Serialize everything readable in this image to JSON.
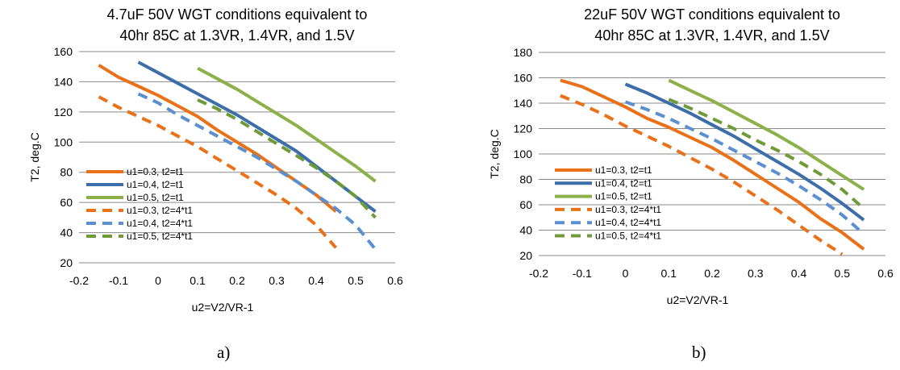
{
  "chart_data": [
    {
      "type": "line",
      "title": "4.7uF 50V WGT conditions equivalent to 40hr 85C at 1.3VR, 1.4VR, and 1.5V",
      "title_lines": [
        "4.7uF 50V WGT conditions equivalent to",
        "40hr 85C at 1.3VR, 1.4VR, and 1.5V"
      ],
      "xlabel": "u2=V2/VR-1",
      "ylabel": "T2, deg.C",
      "xlim": [
        -0.2,
        0.6
      ],
      "ylim": [
        20,
        160
      ],
      "x_ticks": [
        "-0.2",
        "-0.1",
        "0",
        "0.1",
        "0.2",
        "0.3",
        "0.4",
        "0.5",
        "0.6"
      ],
      "y_ticks": [
        "20",
        "40",
        "60",
        "80",
        "100",
        "120",
        "140",
        "160"
      ],
      "grid": "horizontal",
      "legend_position": "lower-left",
      "caption": "a)",
      "series": [
        {
          "name": "u1=0.3, t2=t1",
          "color": "#E8711A",
          "style": "solid",
          "points": [
            [
              -0.15,
              151
            ],
            [
              -0.1,
              143
            ],
            [
              -0.05,
              137
            ],
            [
              0,
              131
            ],
            [
              0.05,
              124
            ],
            [
              0.1,
              117
            ],
            [
              0.15,
              108
            ],
            [
              0.2,
              100
            ],
            [
              0.25,
              92
            ],
            [
              0.3,
              83
            ],
            [
              0.35,
              74
            ],
            [
              0.4,
              65
            ],
            [
              0.45,
              54
            ]
          ]
        },
        {
          "name": "u1=0.4, t2=t1",
          "color": "#3E6EA8",
          "style": "solid",
          "points": [
            [
              -0.05,
              153
            ],
            [
              0,
              146
            ],
            [
              0.05,
              139
            ],
            [
              0.1,
              132
            ],
            [
              0.15,
              125
            ],
            [
              0.2,
              118
            ],
            [
              0.25,
              110
            ],
            [
              0.3,
              102
            ],
            [
              0.35,
              94
            ],
            [
              0.4,
              84
            ],
            [
              0.45,
              74
            ],
            [
              0.5,
              64
            ],
            [
              0.55,
              54
            ]
          ]
        },
        {
          "name": "u1=0.5, t2=t1",
          "color": "#8CB04A",
          "style": "solid",
          "points": [
            [
              0.1,
              149
            ],
            [
              0.15,
              142
            ],
            [
              0.2,
              135
            ],
            [
              0.25,
              127
            ],
            [
              0.3,
              119
            ],
            [
              0.35,
              111
            ],
            [
              0.4,
              102
            ],
            [
              0.45,
              93
            ],
            [
              0.5,
              84
            ],
            [
              0.55,
              74
            ]
          ]
        },
        {
          "name": "u1=0.3, t2=4*t1",
          "color": "#E8711A",
          "style": "dashed",
          "points": [
            [
              -0.15,
              130
            ],
            [
              -0.1,
              123
            ],
            [
              -0.05,
              117
            ],
            [
              0,
              111
            ],
            [
              0.05,
              104
            ],
            [
              0.1,
              97
            ],
            [
              0.15,
              89
            ],
            [
              0.2,
              81
            ],
            [
              0.25,
              73
            ],
            [
              0.3,
              65
            ],
            [
              0.35,
              56
            ],
            [
              0.4,
              45
            ],
            [
              0.45,
              30
            ]
          ]
        },
        {
          "name": "u1=0.4, t2=4*t1",
          "color": "#5B8FD0",
          "style": "dashed",
          "points": [
            [
              -0.05,
              132
            ],
            [
              0,
              126
            ],
            [
              0.05,
              118
            ],
            [
              0.1,
              111
            ],
            [
              0.15,
              104
            ],
            [
              0.2,
              97
            ],
            [
              0.25,
              90
            ],
            [
              0.3,
              82
            ],
            [
              0.35,
              74
            ],
            [
              0.4,
              65
            ],
            [
              0.45,
              56
            ],
            [
              0.5,
              45
            ],
            [
              0.55,
              29
            ]
          ]
        },
        {
          "name": "u1=0.5, t2=4*t1",
          "color": "#6E9A3A",
          "style": "dashed",
          "points": [
            [
              0.1,
              128
            ],
            [
              0.15,
              122
            ],
            [
              0.2,
              115
            ],
            [
              0.25,
              107
            ],
            [
              0.3,
              99
            ],
            [
              0.35,
              91
            ],
            [
              0.4,
              83
            ],
            [
              0.45,
              74
            ],
            [
              0.5,
              64
            ],
            [
              0.55,
              50
            ]
          ]
        }
      ]
    },
    {
      "type": "line",
      "title": "22uF 50V WGT conditions equivalent to 40hr 85C at 1.3VR, 1.4VR, and 1.5V",
      "title_lines": [
        "22uF 50V WGT conditions equivalent to",
        "40hr 85C at 1.3VR, 1.4VR, and 1.5V"
      ],
      "xlabel": "u2=V2/VR-1",
      "ylabel": "T2, deg.C",
      "xlim": [
        -0.2,
        0.6
      ],
      "ylim": [
        20,
        180
      ],
      "x_ticks": [
        "-0.2",
        "-0.1",
        "0",
        "0.1",
        "0.2",
        "0.3",
        "0.4",
        "0.5",
        "0.6"
      ],
      "y_ticks": [
        "20",
        "40",
        "60",
        "80",
        "100",
        "120",
        "140",
        "160",
        "180"
      ],
      "grid": "horizontal",
      "legend_position": "lower-left",
      "caption": "b)",
      "series": [
        {
          "name": "u1=0.3, t2=t1",
          "color": "#E8711A",
          "style": "solid",
          "points": [
            [
              -0.15,
              158
            ],
            [
              -0.1,
              153
            ],
            [
              -0.05,
              145
            ],
            [
              0,
              137
            ],
            [
              0.05,
              128
            ],
            [
              0.1,
              121
            ],
            [
              0.15,
              113
            ],
            [
              0.2,
              105
            ],
            [
              0.25,
              95
            ],
            [
              0.3,
              84
            ],
            [
              0.35,
              73
            ],
            [
              0.4,
              62
            ],
            [
              0.45,
              49
            ],
            [
              0.5,
              38
            ],
            [
              0.55,
              25
            ]
          ]
        },
        {
          "name": "u1=0.4, t2=t1",
          "color": "#3E6EA8",
          "style": "solid",
          "points": [
            [
              0,
              155
            ],
            [
              0.05,
              148
            ],
            [
              0.1,
              140
            ],
            [
              0.15,
              132
            ],
            [
              0.2,
              123
            ],
            [
              0.25,
              114
            ],
            [
              0.3,
              104
            ],
            [
              0.35,
              94
            ],
            [
              0.4,
              84
            ],
            [
              0.45,
              73
            ],
            [
              0.5,
              61
            ],
            [
              0.55,
              48
            ]
          ]
        },
        {
          "name": "u1=0.5, t2=t1",
          "color": "#8CB04A",
          "style": "solid",
          "points": [
            [
              0.1,
              158
            ],
            [
              0.15,
              150
            ],
            [
              0.2,
              142
            ],
            [
              0.25,
              133
            ],
            [
              0.3,
              124
            ],
            [
              0.35,
              115
            ],
            [
              0.4,
              105
            ],
            [
              0.45,
              94
            ],
            [
              0.5,
              83
            ],
            [
              0.55,
              72
            ]
          ]
        },
        {
          "name": "u1=0.3, t2=4*t1",
          "color": "#E8711A",
          "style": "dashed",
          "points": [
            [
              -0.15,
              146
            ],
            [
              -0.1,
              139
            ],
            [
              -0.05,
              131
            ],
            [
              0,
              122
            ],
            [
              0.05,
              114
            ],
            [
              0.1,
              106
            ],
            [
              0.15,
              97
            ],
            [
              0.2,
              88
            ],
            [
              0.25,
              78
            ],
            [
              0.3,
              67
            ],
            [
              0.35,
              56
            ],
            [
              0.4,
              44
            ],
            [
              0.45,
              32
            ],
            [
              0.5,
              21
            ]
          ]
        },
        {
          "name": "u1=0.4, t2=4*t1",
          "color": "#5B8FD0",
          "style": "dashed",
          "points": [
            [
              0,
              141
            ],
            [
              0.05,
              135
            ],
            [
              0.1,
              128
            ],
            [
              0.15,
              120
            ],
            [
              0.2,
              112
            ],
            [
              0.25,
              103
            ],
            [
              0.3,
              94
            ],
            [
              0.35,
              85
            ],
            [
              0.4,
              75
            ],
            [
              0.45,
              64
            ],
            [
              0.5,
              52
            ],
            [
              0.55,
              37
            ]
          ]
        },
        {
          "name": "u1=0.5, t2=4*t1",
          "color": "#6E9A3A",
          "style": "dashed",
          "points": [
            [
              0.1,
              143
            ],
            [
              0.15,
              136
            ],
            [
              0.2,
              128
            ],
            [
              0.25,
              120
            ],
            [
              0.3,
              111
            ],
            [
              0.35,
              103
            ],
            [
              0.4,
              94
            ],
            [
              0.45,
              84
            ],
            [
              0.5,
              72
            ],
            [
              0.55,
              57
            ]
          ]
        }
      ]
    }
  ]
}
